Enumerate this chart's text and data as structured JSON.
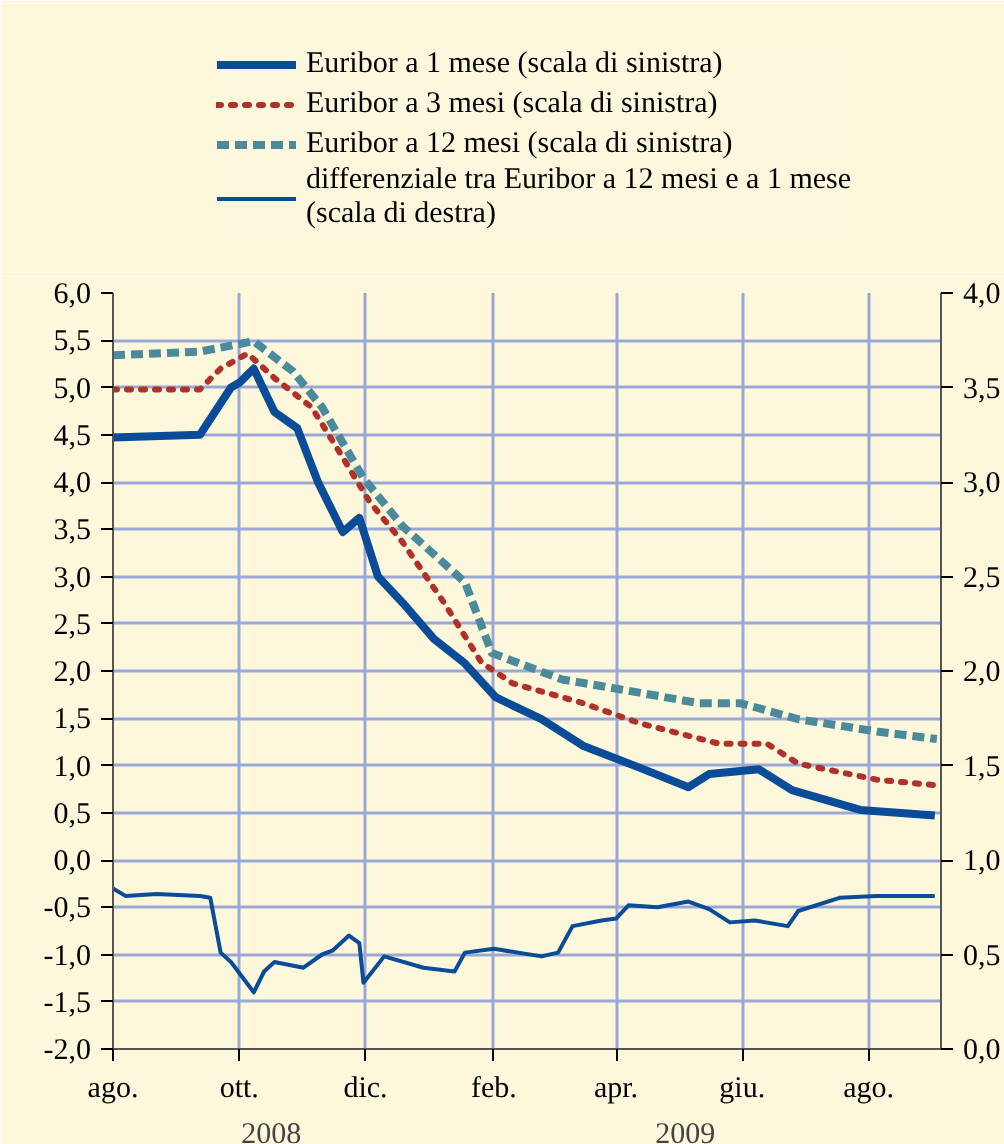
{
  "chart_data": {
    "type": "line",
    "legend": "top",
    "grid": true,
    "xlim": [
      "2008-08-01",
      "2009-09-05"
    ],
    "xticks": [
      {
        "value": "2008-08-01",
        "label": "ago."
      },
      {
        "value": "2008-10-01",
        "label": "ott."
      },
      {
        "value": "2008-12-01",
        "label": "dic."
      },
      {
        "value": "2009-02-01",
        "label": "feb."
      },
      {
        "value": "2009-04-01",
        "label": "apr."
      },
      {
        "value": "2009-06-01",
        "label": "giu."
      },
      {
        "value": "2009-08-01",
        "label": "ago."
      }
    ],
    "ylim": [
      -2,
      6
    ],
    "yticks": [
      {
        "value": -2,
        "label": "-2,0"
      },
      {
        "value": -1.5,
        "label": "-1,5"
      },
      {
        "value": -1,
        "label": "-1,0"
      },
      {
        "value": -0.5,
        "label": "-0,5"
      },
      {
        "value": 0,
        "label": "0,0"
      },
      {
        "value": 0.5,
        "label": "0,5"
      },
      {
        "value": 1,
        "label": "1,0"
      },
      {
        "value": 1.5,
        "label": "1,5"
      },
      {
        "value": 2,
        "label": "2,0"
      },
      {
        "value": 2.5,
        "label": "2,5"
      },
      {
        "value": 3,
        "label": "3,0"
      },
      {
        "value": 3.5,
        "label": "3,5"
      },
      {
        "value": 4,
        "label": "4,0"
      },
      {
        "value": 4.5,
        "label": "4,5"
      },
      {
        "value": 5,
        "label": "5,0"
      },
      {
        "value": 5.5,
        "label": "5,5"
      },
      {
        "value": 6,
        "label": "6,0"
      }
    ],
    "y2lim": [
      0,
      4
    ],
    "y2ticks": [
      {
        "value": 0,
        "label": "0,0"
      },
      {
        "value": 0.5,
        "label": "0,5"
      },
      {
        "value": 1,
        "label": "1,0"
      },
      {
        "value": 1.5,
        "label": "1,5"
      },
      {
        "value": 2,
        "label": "2,0"
      },
      {
        "value": 2.5,
        "label": "2,5"
      },
      {
        "value": 3,
        "label": "3,0"
      },
      {
        "value": 3.5,
        "label": "3,5"
      },
      {
        "value": 4,
        "label": "4,0"
      }
    ],
    "annotations": [
      "2008",
      "2009"
    ],
    "series": [
      {
        "name": "Euribor a 1 mese (scala di sinistra)",
        "color": "#0a4c97",
        "line_style": "solid",
        "x": [
          "2008-08-01",
          "2008-09-12",
          "2008-09-27",
          "2008-10-01",
          "2008-10-08",
          "2008-10-18",
          "2008-10-29",
          "2008-11-08",
          "2008-11-20",
          "2008-11-28",
          "2008-12-07",
          "2008-12-19",
          "2009-01-03",
          "2009-01-18",
          "2009-02-02",
          "2009-02-24",
          "2009-03-16",
          "2009-04-12",
          "2009-05-06",
          "2009-05-16",
          "2009-06-09",
          "2009-06-25",
          "2009-07-28",
          "2009-09-02"
        ],
        "values": [
          4.47,
          4.5,
          5.0,
          5.05,
          5.2,
          4.74,
          4.57,
          4.0,
          3.47,
          3.62,
          3.0,
          2.72,
          2.34,
          2.08,
          1.72,
          1.49,
          1.21,
          0.98,
          0.77,
          0.91,
          0.96,
          0.74,
          0.53,
          0.47
        ]
      },
      {
        "name": "Euribor a 3 mesi (scala di sinistra)",
        "color": "#b0302a",
        "line_style": "dotted",
        "x": [
          "2008-08-01",
          "2008-09-12",
          "2008-09-22",
          "2008-10-05",
          "2008-10-18",
          "2008-11-05",
          "2008-11-20",
          "2008-12-03",
          "2008-12-19",
          "2009-01-08",
          "2009-01-26",
          "2009-02-10",
          "2009-03-16",
          "2009-04-12",
          "2009-05-21",
          "2009-06-13",
          "2009-06-28",
          "2009-08-05",
          "2009-09-03"
        ],
        "values": [
          4.98,
          4.98,
          5.2,
          5.36,
          5.1,
          4.79,
          4.26,
          3.79,
          3.36,
          2.72,
          2.09,
          1.87,
          1.66,
          1.45,
          1.23,
          1.23,
          1.02,
          0.85,
          0.79
        ]
      },
      {
        "name": "Euribor a 12 mesi (scala di sinistra)",
        "color": "#4a8a9a",
        "line_style": "dashed",
        "x": [
          "2008-08-01",
          "2008-09-12",
          "2008-10-08",
          "2008-10-27",
          "2008-11-10",
          "2008-11-30",
          "2008-12-19",
          "2009-01-18",
          "2009-01-31",
          "2009-03-06",
          "2009-04-02",
          "2009-05-11",
          "2009-05-31",
          "2009-06-28",
          "2009-08-05",
          "2009-09-03"
        ],
        "values": [
          5.34,
          5.38,
          5.49,
          5.17,
          4.79,
          4.04,
          3.53,
          2.94,
          2.19,
          1.91,
          1.81,
          1.66,
          1.66,
          1.49,
          1.36,
          1.28
        ]
      },
      {
        "name": "differenziale tra Euribor a 12 mesi e a 1 mese (scala di destra)",
        "color": "#0a4c97",
        "line_style": "solid",
        "axis": "y2",
        "x": [
          "2008-08-01",
          "2008-08-07",
          "2008-08-22",
          "2008-09-12",
          "2008-09-17",
          "2008-09-22",
          "2008-09-27",
          "2008-10-08",
          "2008-10-13",
          "2008-10-18",
          "2008-11-01",
          "2008-11-10",
          "2008-11-15",
          "2008-11-23",
          "2008-11-28",
          "2008-11-30",
          "2008-12-10",
          "2008-12-29",
          "2009-01-13",
          "2009-01-18",
          "2009-02-01",
          "2009-02-24",
          "2009-03-04",
          "2009-03-11",
          "2009-03-25",
          "2009-04-01",
          "2009-04-07",
          "2009-04-21",
          "2009-05-06",
          "2009-05-16",
          "2009-05-26",
          "2009-06-07",
          "2009-06-23",
          "2009-06-28",
          "2009-07-18",
          "2009-08-05",
          "2009-09-02"
        ],
        "values": [
          0.85,
          0.81,
          0.82,
          0.81,
          0.8,
          0.51,
          0.46,
          0.3,
          0.41,
          0.46,
          0.43,
          0.5,
          0.52,
          0.6,
          0.56,
          0.35,
          0.49,
          0.43,
          0.41,
          0.51,
          0.53,
          0.49,
          0.51,
          0.65,
          0.68,
          0.69,
          0.76,
          0.75,
          0.78,
          0.74,
          0.67,
          0.68,
          0.65,
          0.73,
          0.8,
          0.81,
          0.81
        ]
      }
    ]
  }
}
